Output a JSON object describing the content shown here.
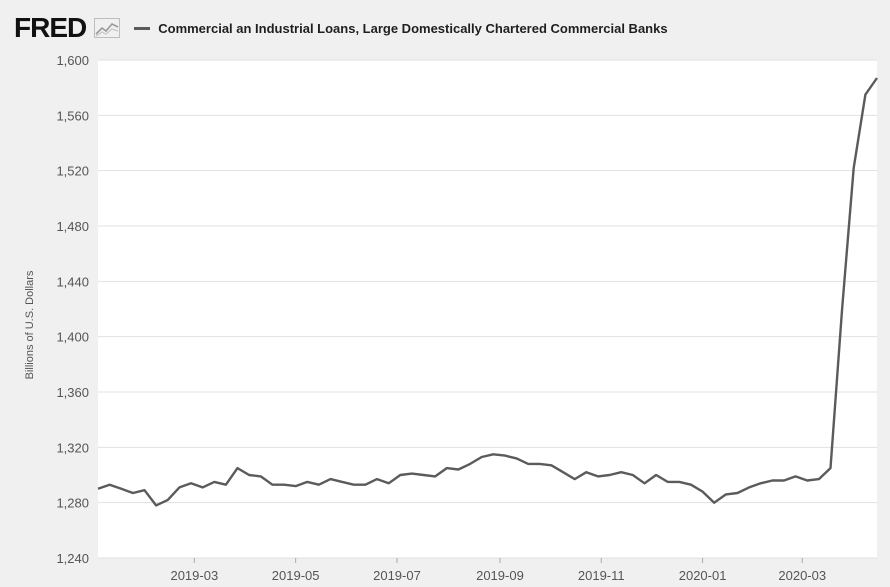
{
  "header": {
    "logo": "FRED",
    "title": "Commercial an Industrial Loans, Large Domestically Chartered Commercial Banks"
  },
  "colors": {
    "background": "#f0f0f0",
    "plot_background": "#ffffff",
    "line": "#5b5b5b",
    "grid": "#e1e1e1"
  },
  "icons": [
    "chart-line-icon",
    "legend-line-icon"
  ],
  "chart_data": {
    "type": "line",
    "title": "Commercial an Industrial Loans, Large Domestically Chartered Commercial Banks",
    "xlabel": "",
    "ylabel": "Billions of U.S. Dollars",
    "ylim": [
      1240,
      1600
    ],
    "yticks": [
      1240,
      1280,
      1320,
      1360,
      1400,
      1440,
      1480,
      1520,
      1560,
      1600
    ],
    "ytick_labels": [
      "1,240",
      "1,280",
      "1,320",
      "1,360",
      "1,400",
      "1,440",
      "1,480",
      "1,520",
      "1,560",
      "1,600"
    ],
    "xlim": [
      "2019-01-02",
      "2020-04-15"
    ],
    "xticks": [
      "2019-03-01",
      "2019-05-01",
      "2019-07-01",
      "2019-09-01",
      "2019-11-01",
      "2020-01-01",
      "2020-03-01"
    ],
    "xtick_labels": [
      "2019-03",
      "2019-05",
      "2019-07",
      "2019-09",
      "2019-11",
      "2020-01",
      "2020-03"
    ],
    "grid": "horizontal",
    "legend": "top-left",
    "series": [
      {
        "name": "Commercial an Industrial Loans, Large Domestically Chartered Commercial Banks",
        "x": [
          "2019-01-02",
          "2019-01-09",
          "2019-01-16",
          "2019-01-23",
          "2019-01-30",
          "2019-02-06",
          "2019-02-13",
          "2019-02-20",
          "2019-02-27",
          "2019-03-06",
          "2019-03-13",
          "2019-03-20",
          "2019-03-27",
          "2019-04-03",
          "2019-04-10",
          "2019-04-17",
          "2019-04-24",
          "2019-05-01",
          "2019-05-08",
          "2019-05-15",
          "2019-05-22",
          "2019-05-29",
          "2019-06-05",
          "2019-06-12",
          "2019-06-19",
          "2019-06-26",
          "2019-07-03",
          "2019-07-10",
          "2019-07-17",
          "2019-07-24",
          "2019-07-31",
          "2019-08-07",
          "2019-08-14",
          "2019-08-21",
          "2019-08-28",
          "2019-09-04",
          "2019-09-11",
          "2019-09-18",
          "2019-09-25",
          "2019-10-02",
          "2019-10-09",
          "2019-10-16",
          "2019-10-23",
          "2019-10-30",
          "2019-11-06",
          "2019-11-13",
          "2019-11-20",
          "2019-11-27",
          "2019-12-04",
          "2019-12-11",
          "2019-12-18",
          "2019-12-25",
          "2020-01-01",
          "2020-01-08",
          "2020-01-15",
          "2020-01-22",
          "2020-01-29",
          "2020-02-05",
          "2020-02-12",
          "2020-02-19",
          "2020-02-26",
          "2020-03-04",
          "2020-03-11",
          "2020-03-18",
          "2020-03-25",
          "2020-04-01",
          "2020-04-08",
          "2020-04-15"
        ],
        "values": [
          1290,
          1293,
          1290,
          1287,
          1289,
          1278,
          1282,
          1291,
          1294,
          1291,
          1295,
          1293,
          1305,
          1300,
          1299,
          1293,
          1293,
          1292,
          1295,
          1293,
          1297,
          1295,
          1293,
          1293,
          1297,
          1294,
          1300,
          1301,
          1300,
          1299,
          1305,
          1304,
          1308,
          1313,
          1315,
          1314,
          1312,
          1308,
          1308,
          1307,
          1302,
          1297,
          1302,
          1299,
          1300,
          1302,
          1300,
          1294,
          1300,
          1295,
          1295,
          1293,
          1288,
          1280,
          1286,
          1287,
          1291,
          1294,
          1296,
          1296,
          1299,
          1296,
          1297,
          1305,
          1420,
          1522,
          1575,
          1587
        ]
      }
    ]
  }
}
